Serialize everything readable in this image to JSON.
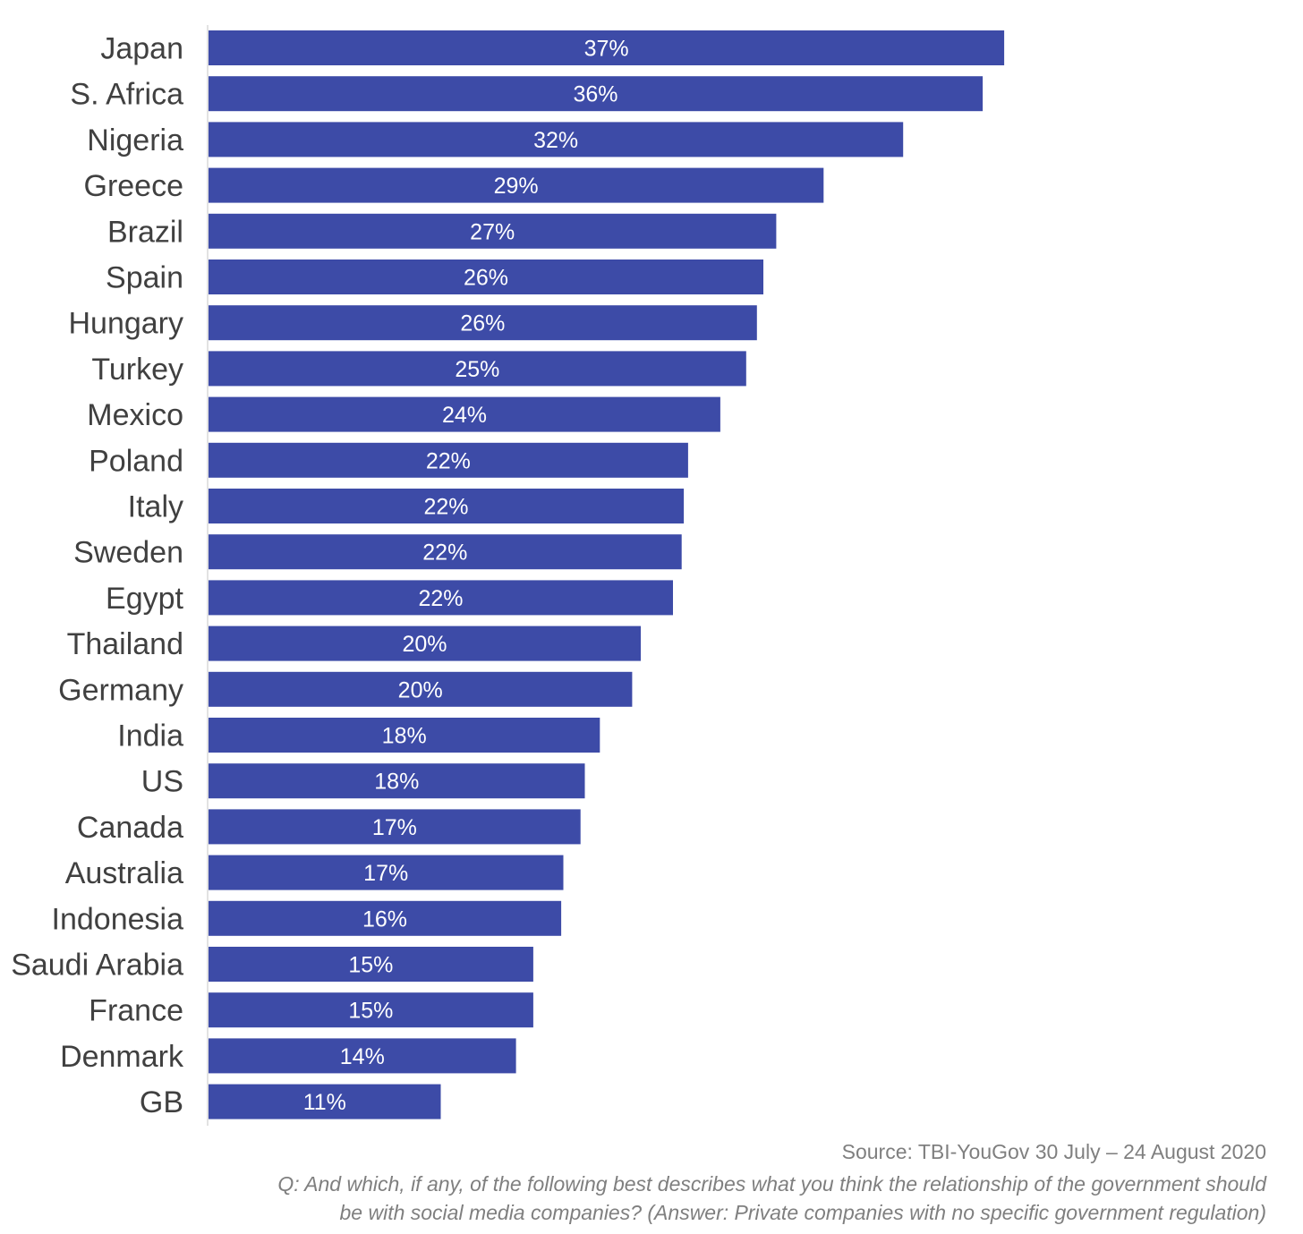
{
  "colors": {
    "bar": "#3d4ba7",
    "axis": "#d9d9d9",
    "category_text": "#404040",
    "value_text": "#ffffff",
    "footer_text": "#7f7f7f"
  },
  "chart_data": {
    "type": "bar",
    "orientation": "horizontal",
    "categories": [
      "Japan",
      "S. Africa",
      "Nigeria",
      "Greece",
      "Brazil",
      "Spain",
      "Hungary",
      "Turkey",
      "Mexico",
      "Poland",
      "Italy",
      "Sweden",
      "Egypt",
      "Thailand",
      "Germany",
      "India",
      "US",
      "Canada",
      "Australia",
      "Indonesia",
      "Saudi Arabia",
      "France",
      "Denmark",
      "GB"
    ],
    "values": [
      37,
      36,
      32,
      29,
      27,
      26,
      26,
      25,
      24,
      22,
      22,
      22,
      22,
      20,
      20,
      18,
      18,
      17,
      17,
      16,
      15,
      15,
      14,
      11
    ],
    "extents": [
      37.0,
      36.0,
      32.3,
      28.6,
      26.4,
      25.8,
      25.5,
      25.0,
      23.8,
      22.3,
      22.1,
      22.0,
      21.6,
      20.1,
      19.7,
      18.2,
      17.5,
      17.3,
      16.5,
      16.4,
      15.1,
      15.1,
      14.3,
      10.8
    ],
    "value_labels": [
      "37%",
      "36%",
      "32%",
      "29%",
      "27%",
      "26%",
      "26%",
      "25%",
      "24%",
      "22%",
      "22%",
      "22%",
      "22%",
      "20%",
      "20%",
      "18%",
      "18%",
      "17%",
      "17%",
      "16%",
      "15%",
      "15%",
      "14%",
      "11%"
    ],
    "unit": "%",
    "title": "",
    "xlabel": "",
    "ylabel": "",
    "xlim": [
      0,
      37
    ],
    "grid": false,
    "legend": "none"
  },
  "footer": {
    "source": "Source: TBI-YouGov 30 July – 24 August 2020",
    "question_line1": "Q: And which, if any, of the following best describes what you think the relationship of the government should",
    "question_line2": "be with social media companies? (Answer: Private companies with no specific government regulation)"
  }
}
